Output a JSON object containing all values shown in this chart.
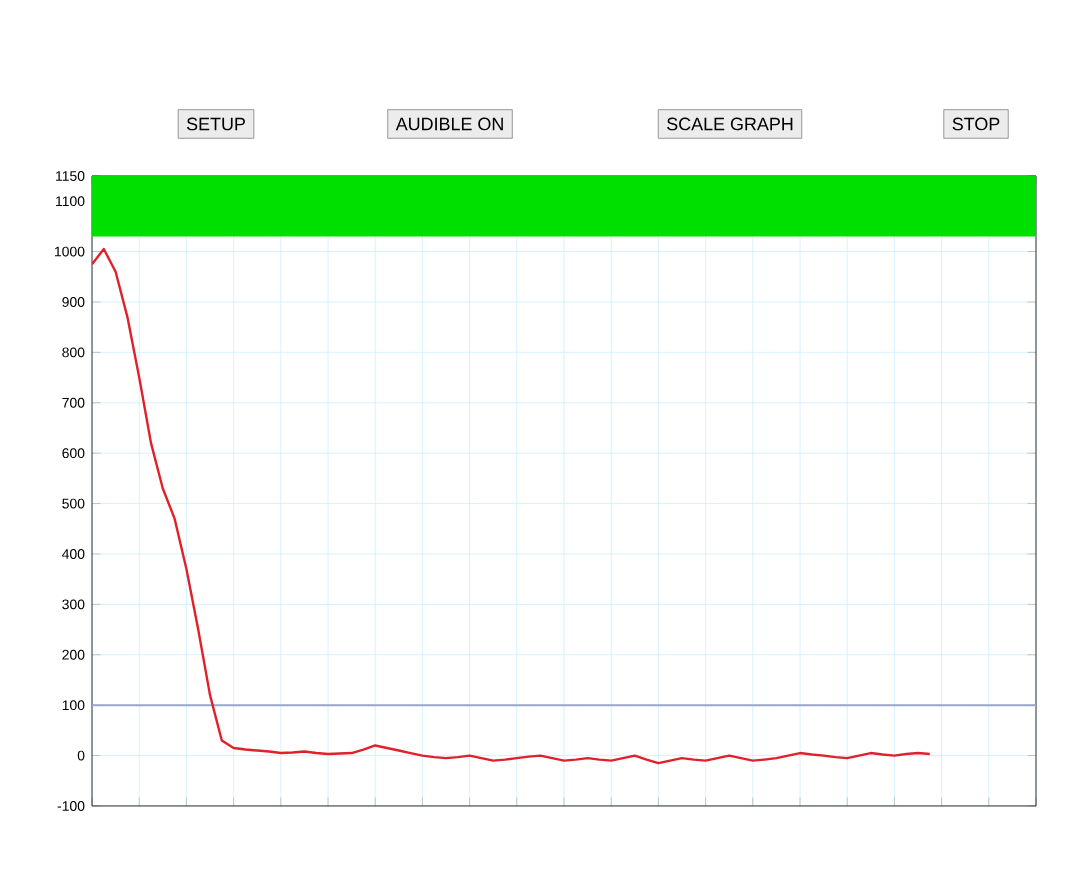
{
  "chart_data": {
    "type": "line",
    "annotations": [
      "SETUP",
      "AUDIBLE ON",
      "SCALE GRAPH",
      "STOP"
    ],
    "categories": [
      null,
      null,
      null,
      null,
      null,
      null,
      null,
      null,
      null,
      null,
      null,
      null,
      null,
      null,
      null,
      null,
      null,
      null,
      null,
      null,
      null,
      null,
      null,
      null,
      null,
      null,
      null,
      null,
      null,
      null,
      null,
      null,
      null,
      null,
      null,
      null,
      null,
      null,
      null,
      null,
      null,
      null,
      null,
      null,
      null,
      null,
      null,
      null,
      null,
      null,
      null,
      null,
      null,
      null,
      null,
      null,
      null,
      null,
      null,
      null,
      null,
      null,
      null,
      null,
      null,
      null,
      null,
      null,
      null,
      null,
      null,
      null,
      null,
      null,
      null,
      null,
      null,
      null,
      null,
      null,
      null
    ],
    "series": [
      {
        "color": "#e0202a",
        "values": [
          975,
          1005,
          960,
          870,
          750,
          620,
          530,
          470,
          370,
          250,
          120,
          30,
          15,
          12,
          10,
          8,
          5,
          6,
          8,
          5,
          3,
          4,
          5,
          12,
          20,
          15,
          10,
          5,
          0,
          -3,
          -5,
          -3,
          0,
          -5,
          -10,
          -8,
          -5,
          -2,
          0,
          -5,
          -10,
          -8,
          -5,
          -8,
          -10,
          -5,
          0,
          -8,
          -15,
          -10,
          -5,
          -8,
          -10,
          -5,
          0,
          -5,
          -10,
          -8,
          -5,
          0,
          5,
          2,
          0,
          -3,
          -5,
          0,
          5,
          2,
          0,
          3,
          5,
          3,
          null,
          null,
          null,
          null,
          null,
          null,
          null,
          null,
          null
        ]
      }
    ],
    "ylim": [
      -100,
      1150
    ],
    "yticks": [
      -100,
      0,
      100,
      200,
      300,
      400,
      500,
      600,
      700,
      800,
      900,
      1000,
      1100,
      1150
    ],
    "ref_lines": [
      {
        "axis": "y",
        "value": 100,
        "color": "#9aa6c8"
      }
    ],
    "bands": [
      {
        "axis": "y",
        "from": 1030,
        "to": 1150,
        "color": "#00e000"
      }
    ],
    "grid": true,
    "marker": "none",
    "line_style": "solid",
    "tick_labels": "y"
  }
}
